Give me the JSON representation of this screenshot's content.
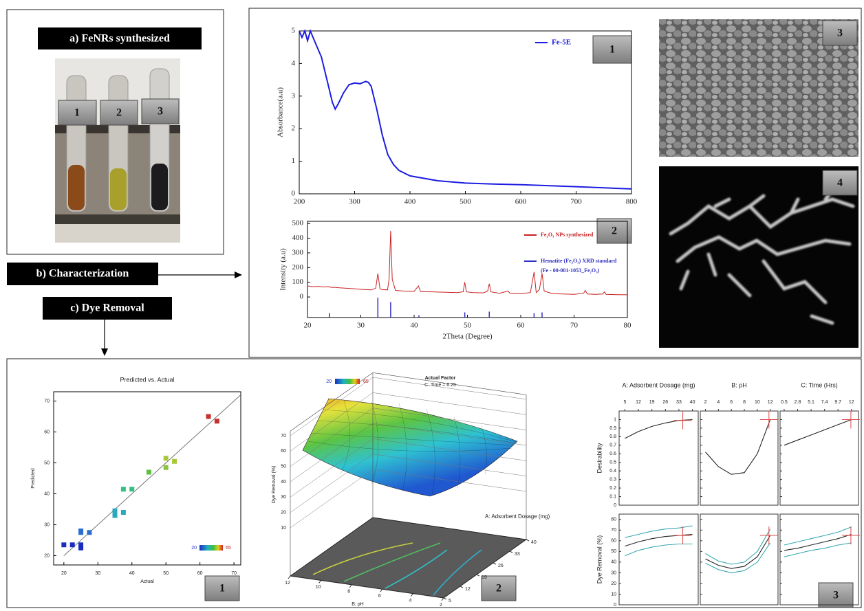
{
  "panel_a": {
    "title": "a) FeNRs synthesized",
    "tube_labels": [
      "1",
      "2",
      "3"
    ]
  },
  "panel_b": {
    "title": "b) Characterization",
    "badges": [
      "1",
      "2",
      "3",
      "4"
    ]
  },
  "panel_c": {
    "title": "c) Dye Removal",
    "badges": [
      "1",
      "2",
      "3"
    ]
  },
  "chart_data": [
    {
      "type": "line",
      "y_label": "Absorbance(a.u)",
      "legend": "upper right",
      "x": [
        200,
        205,
        210,
        215,
        220,
        225,
        230,
        240,
        250,
        260,
        265,
        270,
        280,
        290,
        300,
        310,
        320,
        325,
        330,
        340,
        350,
        360,
        370,
        380,
        400,
        450,
        500,
        550,
        600,
        700,
        800
      ],
      "series": [
        {
          "name": "Fe-5E",
          "color": "#1c1ce0",
          "values": [
            5,
            4.8,
            5,
            4.7,
            5,
            4.8,
            4.6,
            4.2,
            3.5,
            2.8,
            2.6,
            2.75,
            3.1,
            3.35,
            3.4,
            3.38,
            3.45,
            3.42,
            3.3,
            2.6,
            1.8,
            1.2,
            0.9,
            0.72,
            0.55,
            0.4,
            0.33,
            0.3,
            0.28,
            0.22,
            0.15
          ]
        }
      ],
      "xlim": [
        200,
        800
      ],
      "ylim": [
        0,
        5
      ],
      "xticks": [
        200,
        300,
        400,
        500,
        600,
        700,
        800
      ],
      "yticks": [
        0,
        1,
        2,
        3,
        4,
        5
      ]
    },
    {
      "type": "line",
      "x_label": "2Theta (Degree)",
      "y_label": "Intensity (a.u)",
      "legend": "upper right",
      "series": [
        {
          "name": "Fe₂O₃ NPs synthesized",
          "color": "#c82020",
          "x": [
            20,
            21,
            22,
            23,
            24,
            24.5,
            25,
            26,
            27,
            28,
            29,
            30,
            31,
            32,
            32.8,
            33.2,
            33.6,
            34,
            35,
            35.3,
            35.6,
            35.9,
            36.5,
            38,
            40,
            40.8,
            41.2,
            42,
            44,
            46,
            48,
            49.2,
            49.5,
            49.8,
            51,
            53,
            53.8,
            54.1,
            54.4,
            56,
            57.6,
            58,
            60,
            61.8,
            62.5,
            62.9,
            63.5,
            64,
            64.4,
            66,
            68,
            70,
            71.8,
            72.1,
            72.5,
            74,
            75.4,
            75.7,
            76,
            78,
            80
          ],
          "values": [
            75,
            70,
            72,
            68,
            70,
            65,
            66,
            62,
            60,
            58,
            55,
            52,
            50,
            48,
            60,
            160,
            55,
            50,
            48,
            120,
            450,
            120,
            45,
            40,
            38,
            75,
            38,
            36,
            34,
            32,
            30,
            35,
            100,
            35,
            30,
            28,
            40,
            90,
            35,
            25,
            40,
            25,
            22,
            30,
            170,
            30,
            50,
            160,
            40,
            22,
            20,
            18,
            25,
            45,
            20,
            18,
            20,
            35,
            18,
            16,
            15
          ]
        },
        {
          "name": "Hematite (Fe₂O₃) XRD standard",
          "source": "(Fe - 00-001-1053_Fe₂O₃)",
          "type": "stem",
          "color": "#3030c0",
          "x": [
            24.1,
            33.2,
            35.6,
            40.9,
            49.5,
            54.1,
            62.5,
            64.0
          ],
          "values": [
            -110,
            -5,
            -35,
            -125,
            -105,
            -100,
            -110,
            -105
          ]
        }
      ],
      "xlim": [
        20,
        80
      ],
      "ylim": [
        -140,
        515
      ],
      "xticks": [
        20,
        30,
        40,
        50,
        60,
        70,
        80
      ],
      "yticks": [
        0,
        100,
        200,
        300,
        400,
        500
      ]
    },
    {
      "type": "scatter",
      "title": "Predicted vs. Actual",
      "x_label": "Actual",
      "y_label": "Predicted",
      "x": [
        20,
        22.5,
        25,
        25,
        25,
        25,
        27.5,
        35,
        35,
        37.5,
        37.5,
        40,
        45,
        50,
        50,
        52.5,
        62.5,
        65
      ],
      "values": [
        23.5,
        23.5,
        23.5,
        22.5,
        27.5,
        28,
        27.5,
        34.5,
        33,
        41.5,
        34,
        41.5,
        47,
        51.5,
        48.5,
        50.5,
        65,
        63.5
      ],
      "colors": [
        "#1c2cc0",
        "#1c2cc0",
        "#1c2cc0",
        "#1c2cc0",
        "#2a6fd0",
        "#2a6fd0",
        "#2a6fd0",
        "#2aa8c0",
        "#2aa8c0",
        "#34c080",
        "#2aa8c0",
        "#34c080",
        "#5cc040",
        "#a8c838",
        "#8cc43c",
        "#a8c838",
        "#c8302a",
        "#c8302a"
      ],
      "colorbar": [
        20,
        65
      ],
      "diagonal": true,
      "xlim": [
        17,
        72
      ],
      "ylim": [
        17,
        73
      ],
      "xticks": [
        20,
        30,
        40,
        50,
        60,
        70
      ],
      "yticks": [
        20,
        30,
        40,
        50,
        60,
        70
      ]
    },
    {
      "type": "surface",
      "z_label": "Dye Removal (%)",
      "x_label": "A: Adsorbent Dosage (mg)",
      "y_label": "B: pH",
      "annotation_title": "Actual Factor",
      "annotation": "C: Time = 6.25",
      "colorbar": [
        20,
        65
      ],
      "zlim": [
        10,
        70
      ],
      "zticks": [
        10,
        20,
        30,
        40,
        50,
        60,
        70
      ],
      "xlim": [
        5,
        40
      ],
      "xticks": [
        5,
        12,
        19,
        26,
        33,
        40
      ],
      "ylim": [
        2,
        12
      ],
      "yticks": [
        12,
        10,
        8,
        6,
        4,
        2
      ]
    },
    {
      "type": "profile",
      "colors": {
        "mean": "#222222",
        "interval": "#3aa8b0",
        "optimum": "#e04848"
      },
      "rows": [
        {
          "label": "Desirability",
          "ylim": [
            0,
            1.1
          ],
          "yticks": [
            0,
            0.1,
            0.2,
            0.3,
            0.4,
            0.5,
            0.6,
            0.7,
            0.8,
            0.9,
            1
          ]
        },
        {
          "label": "Dye Removal (%)",
          "ylim": [
            0,
            85
          ],
          "yticks": [
            0,
            10,
            20,
            30,
            40,
            50,
            60,
            70,
            80
          ]
        }
      ],
      "factors": [
        {
          "name": "A: Adsorbent Dosage (mg)",
          "xlim": [
            2,
            43
          ],
          "xticks": [
            5,
            12,
            19,
            26,
            33,
            40
          ],
          "x": [
            5,
            12,
            19,
            26,
            33,
            40
          ],
          "desirability": [
            0.78,
            0.86,
            0.92,
            0.96,
            0.99,
            1
          ],
          "removal_mean": [
            55,
            59,
            62,
            64,
            65,
            66
          ],
          "removal_lower": [
            46,
            51,
            54,
            56,
            57,
            57
          ],
          "removal_upper": [
            63,
            66,
            69,
            71,
            72,
            74
          ],
          "optimum": {
            "x": 35,
            "desirability": 0.99,
            "removal": 65
          }
        },
        {
          "name": "B: pH",
          "xlim": [
            1.2,
            13.2
          ],
          "xticks": [
            2,
            4,
            6,
            8,
            10,
            12
          ],
          "x": [
            2,
            4,
            6,
            8,
            10,
            12
          ],
          "desirability": [
            0.62,
            0.45,
            0.36,
            0.38,
            0.6,
            1
          ],
          "removal_mean": [
            43,
            37,
            34,
            36,
            45,
            65
          ],
          "removal_lower": [
            39,
            33,
            30,
            32,
            40,
            58
          ],
          "removal_upper": [
            48,
            41,
            38,
            40,
            50,
            71
          ],
          "optimum": {
            "x": 11.8,
            "desirability": 1,
            "removal": 65
          }
        },
        {
          "name": "C: Time (Hrs)",
          "xlim": [
            -0.2,
            13.2
          ],
          "xticks": [
            0.5,
            2.8,
            5.1,
            7.4,
            9.7,
            12
          ],
          "x": [
            0.5,
            2.8,
            5.1,
            7.4,
            9.7,
            12
          ],
          "desirability": [
            0.7,
            0.76,
            0.82,
            0.88,
            0.94,
            1
          ],
          "removal_mean": [
            51,
            53,
            56,
            59,
            62,
            66
          ],
          "removal_lower": [
            45,
            48,
            51,
            53,
            56,
            58
          ],
          "removal_upper": [
            56,
            59,
            62,
            65,
            68,
            73
          ],
          "optimum": {
            "x": 11.9,
            "desirability": 1,
            "removal": 65
          }
        }
      ]
    }
  ]
}
